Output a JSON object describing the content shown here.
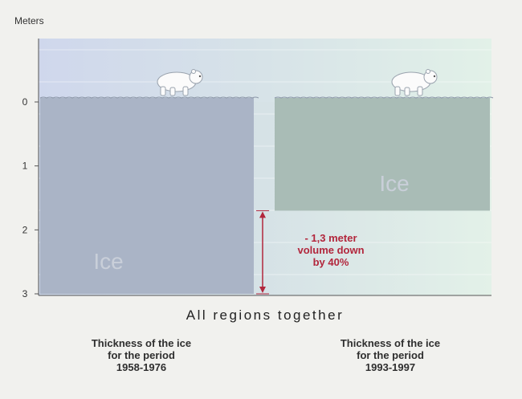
{
  "chart_data": {
    "type": "bar",
    "ylabel": "Meters",
    "y_ticks": [
      "0",
      "1",
      "2",
      "3"
    ],
    "ylim": [
      3,
      0
    ],
    "y_inverted": true,
    "xlabel": "All regions together",
    "bars": [
      {
        "name": "1958-1976",
        "label": "Ice",
        "thickness_m": 3.0,
        "caption": [
          "Thickness of the ice",
          "for the period",
          "1958-1976"
        ],
        "color": "#aab4c6"
      },
      {
        "name": "1993-1997",
        "label": "Ice",
        "thickness_m": 1.7,
        "caption": [
          "Thickness of the ice",
          "for the period",
          "1993-1997"
        ],
        "color": "#a9bcb6"
      }
    ],
    "annotation": {
      "from_m": 1.7,
      "to_m": 3.0,
      "lines": [
        "- 1,3 meter",
        "volume down",
        "by 40%"
      ],
      "color": "#b2263c"
    },
    "icons": [
      "polar-bear-icon",
      "polar-bear-icon"
    ]
  }
}
